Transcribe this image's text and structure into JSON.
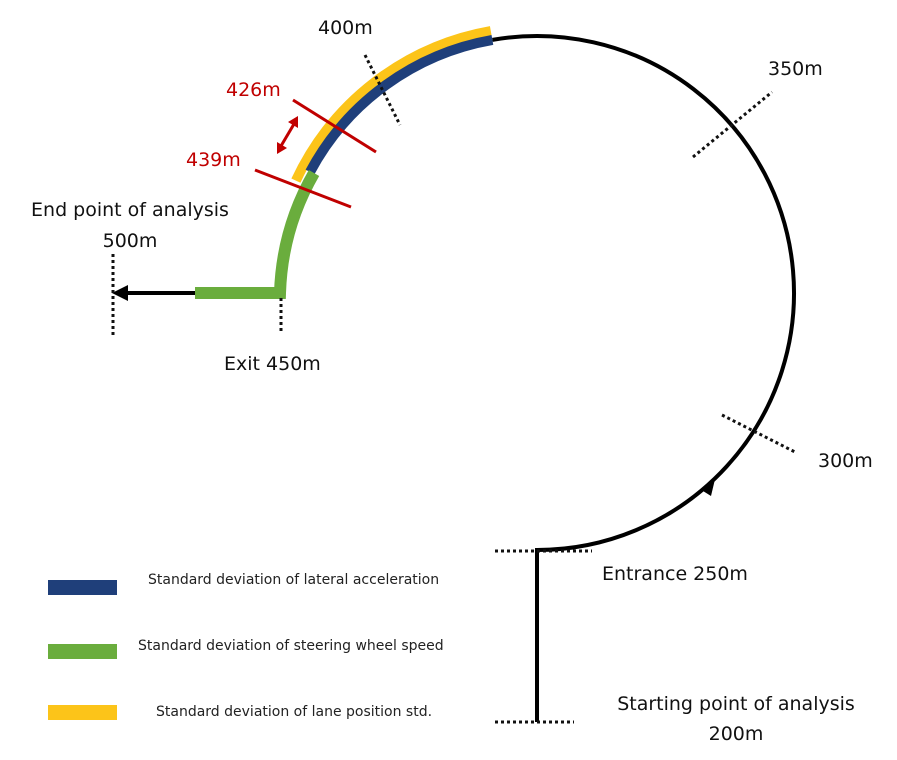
{
  "markers": {
    "m400": "400m",
    "m350": "350m",
    "m300": "300m",
    "entrance": "Entrance 250m",
    "start_title": "Starting point of analysis",
    "start_dist": "200m",
    "exit": "Exit 450m",
    "end_title": "End point of analysis",
    "end_dist": "500m",
    "m426": "426m",
    "m439": "439m"
  },
  "legend": [
    "Standard deviation of lateral acceleration",
    "Standard deviation of steering wheel speed",
    "Standard deviation of lane position std."
  ]
}
